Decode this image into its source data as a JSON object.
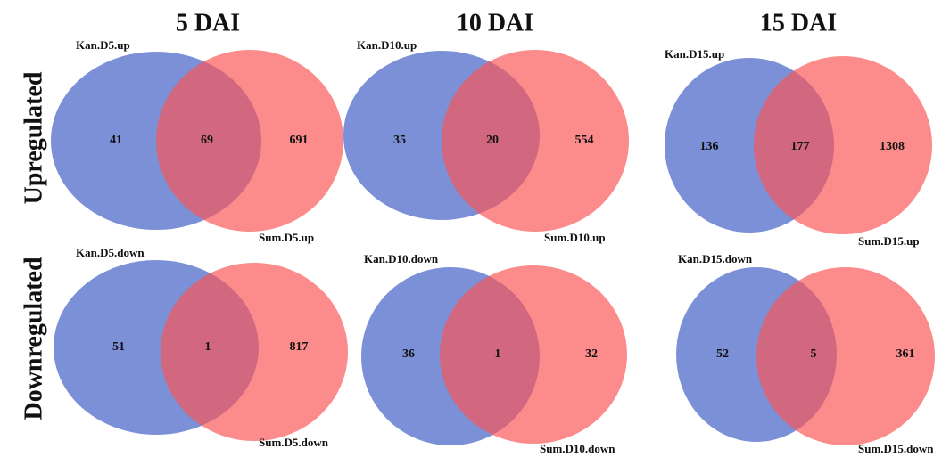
{
  "column_titles": [
    "5 DAI",
    "10 DAI",
    "15 DAI"
  ],
  "row_labels": [
    "Upregulated",
    "Downregulated"
  ],
  "panels": [
    {
      "left_label": "Kan.D5.up",
      "right_label": "Sum.D5.up",
      "left_only": 41,
      "overlap": 69,
      "right_only": 691
    },
    {
      "left_label": "Kan.D10.up",
      "right_label": "Sum.D10.up",
      "left_only": 35,
      "overlap": 20,
      "right_only": 554
    },
    {
      "left_label": "Kan.D15.up",
      "right_label": "Sum.D15.up",
      "left_only": 136,
      "overlap": 177,
      "right_only": 1308
    },
    {
      "left_label": "Kan.D5.down",
      "right_label": "Sum.D5.down",
      "left_only": 51,
      "overlap": 1,
      "right_only": 817
    },
    {
      "left_label": "Kan.D10.down",
      "right_label": "Sum.D10.down",
      "left_only": 36,
      "overlap": 1,
      "right_only": 32
    },
    {
      "left_label": "Kan.D15.down",
      "right_label": "Sum.D15.down",
      "left_only": 52,
      "overlap": 5,
      "right_only": 361
    }
  ]
}
